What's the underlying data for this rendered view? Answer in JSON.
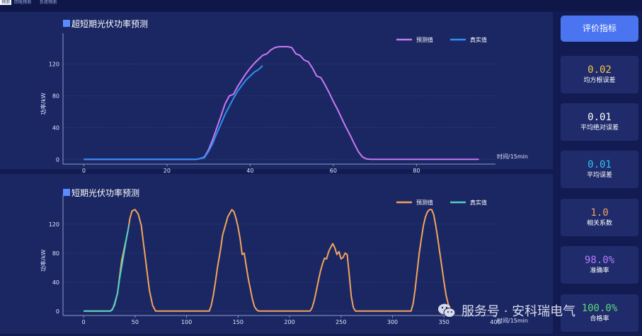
{
  "tabs": [
    {
      "label": "预测",
      "active": true
    },
    {
      "label": "回电预测",
      "active": false
    },
    {
      "label": "负荷预测",
      "active": false
    }
  ],
  "sidebar": {
    "button_label": "评价指标",
    "metrics": [
      {
        "value": "0.02",
        "label": "均方根误差",
        "color": "#f5c542"
      },
      {
        "value": "0.01",
        "label": "平均绝对误差",
        "color": "#ffffff"
      },
      {
        "value": "0.01",
        "label": "平均误差",
        "color": "#29c6f0"
      },
      {
        "value": "1.0",
        "label": "相关系数",
        "color": "#f2a45c"
      },
      {
        "value": "98.0%",
        "label": "准确率",
        "color": "#b57bff"
      },
      {
        "value": "100.0%",
        "label": "合格率",
        "color": "#5fd97a"
      }
    ]
  },
  "watermark": {
    "text": "服务号 · 安科瑞电气"
  },
  "chart_data": [
    {
      "type": "line",
      "title": "超短期光伏功率预测",
      "xlabel": "时间/15min",
      "ylabel": "功率/kW",
      "xlim": [
        -5,
        99
      ],
      "ylim": [
        -6,
        150
      ],
      "xticks": [
        0,
        20,
        40,
        60,
        80
      ],
      "yticks": [
        0,
        40,
        80,
        120
      ],
      "grid": true,
      "legend_position": "top-right",
      "series": [
        {
          "name": "预测值",
          "color": "#c779f2",
          "x": [
            0,
            27,
            28,
            29,
            30,
            31,
            32,
            33,
            34,
            35,
            36,
            37,
            38,
            39,
            40,
            41,
            42,
            43,
            44,
            45,
            46,
            47,
            48,
            49,
            50,
            51,
            52,
            53,
            54,
            55,
            56,
            57,
            58,
            59,
            60,
            61,
            62,
            63,
            64,
            65,
            66,
            67,
            68,
            69,
            95
          ],
          "values": [
            0,
            0,
            1,
            3,
            12,
            25,
            40,
            55,
            70,
            80,
            82,
            92,
            100,
            108,
            115,
            121,
            126,
            131,
            133,
            138,
            141,
            142,
            142,
            142,
            141,
            133,
            131,
            125,
            123,
            115,
            105,
            103,
            94,
            84,
            73,
            63,
            52,
            41,
            31,
            20,
            10,
            3,
            0.5,
            0,
            0
          ]
        },
        {
          "name": "真实值",
          "color": "#2e8ff5",
          "x": [
            0,
            27,
            28,
            29,
            30,
            31,
            32,
            33,
            34,
            35,
            36,
            37,
            38,
            39,
            40,
            41,
            42,
            43
          ],
          "values": [
            0,
            0,
            1,
            2,
            10,
            20,
            33,
            45,
            57,
            67,
            77,
            86,
            93,
            100,
            105,
            110,
            113,
            118
          ]
        }
      ]
    },
    {
      "type": "line",
      "title": "短期光伏功率预测",
      "xlabel": "时间/15min",
      "ylabel": "功率/kW",
      "xlim": [
        -20,
        400
      ],
      "ylim": [
        -6,
        150
      ],
      "xticks": [
        0,
        50,
        100,
        150,
        200,
        250,
        300,
        350,
        400
      ],
      "yticks": [
        0,
        40,
        80,
        120
      ],
      "grid": true,
      "legend_position": "top-right",
      "series": [
        {
          "name": "预测值",
          "color": "#f2a45c",
          "x": [
            0,
            26,
            28,
            30,
            33,
            35,
            37,
            40,
            43,
            45,
            47,
            50,
            53,
            56,
            58,
            60,
            62,
            64,
            67,
            70,
            122,
            124,
            126,
            128,
            130,
            133,
            135,
            138,
            140,
            142,
            144,
            146,
            148,
            150,
            152,
            154,
            156,
            158,
            160,
            162,
            164,
            166,
            168,
            170,
            220,
            222,
            224,
            226,
            228,
            230,
            232,
            234,
            236,
            238,
            240,
            242,
            244,
            246,
            248,
            250,
            252,
            254,
            256,
            258,
            260,
            262,
            264,
            318,
            320,
            322,
            324,
            326,
            328,
            330,
            332,
            334,
            336,
            338,
            340,
            342,
            344,
            346,
            348,
            350,
            352,
            354,
            356,
            358,
            360
          ],
          "values": [
            0,
            0,
            3,
            8,
            25,
            48,
            70,
            90,
            110,
            128,
            138,
            140,
            134,
            118,
            95,
            73,
            50,
            28,
            8,
            0,
            0,
            8,
            22,
            40,
            60,
            85,
            105,
            120,
            130,
            135,
            140,
            137,
            128,
            116,
            100,
            78,
            80,
            62,
            44,
            30,
            16,
            6,
            2,
            0,
            0,
            5,
            15,
            28,
            42,
            55,
            65,
            73,
            72,
            82,
            88,
            93,
            87,
            78,
            82,
            72,
            74,
            80,
            78,
            50,
            20,
            5,
            0,
            0,
            10,
            30,
            55,
            80,
            100,
            118,
            130,
            137,
            140,
            140,
            133,
            118,
            100,
            80,
            60,
            40,
            22,
            10,
            3,
            0,
            0
          ]
        },
        {
          "name": "真实值",
          "color": "#4fd1c5",
          "x": [
            0,
            26,
            28,
            30,
            33,
            35,
            38,
            41,
            44
          ],
          "values": [
            0,
            0,
            2,
            10,
            25,
            45,
            70,
            95,
            118
          ]
        }
      ]
    }
  ]
}
